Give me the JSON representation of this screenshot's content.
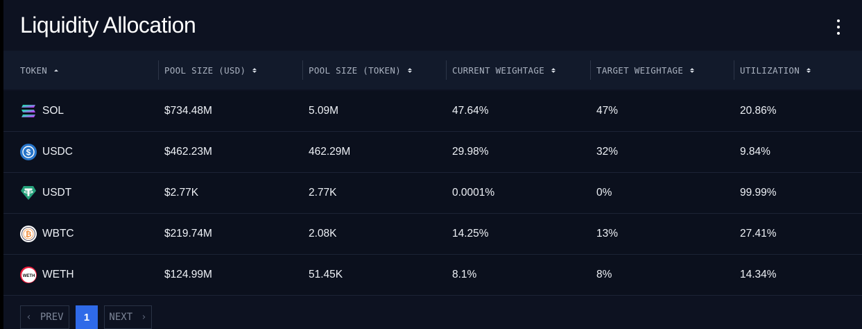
{
  "title": "Liquidity Allocation",
  "more_icon": "more-vertical-icon",
  "columns": [
    {
      "label": "TOKEN",
      "sort": "asc"
    },
    {
      "label": "POOL SIZE (USD)",
      "sort": "both"
    },
    {
      "label": "POOL SIZE (TOKEN)",
      "sort": "both"
    },
    {
      "label": "CURRENT WEIGHTAGE",
      "sort": "both"
    },
    {
      "label": "TARGET WEIGHTAGE",
      "sort": "both"
    },
    {
      "label": "UTILIZATION",
      "sort": "both"
    }
  ],
  "rows": [
    {
      "token": "SOL",
      "icon": "sol-icon",
      "pool_usd": "$734.48M",
      "pool_token": "5.09M",
      "current": "47.64%",
      "target": "47%",
      "utilization": "20.86%"
    },
    {
      "token": "USDC",
      "icon": "usdc-icon",
      "pool_usd": "$462.23M",
      "pool_token": "462.29M",
      "current": "29.98%",
      "target": "32%",
      "utilization": "9.84%"
    },
    {
      "token": "USDT",
      "icon": "usdt-icon",
      "pool_usd": "$2.77K",
      "pool_token": "2.77K",
      "current": "0.0001%",
      "target": "0%",
      "utilization": "99.99%"
    },
    {
      "token": "WBTC",
      "icon": "wbtc-icon",
      "pool_usd": "$219.74M",
      "pool_token": "2.08K",
      "current": "14.25%",
      "target": "13%",
      "utilization": "27.41%"
    },
    {
      "token": "WETH",
      "icon": "weth-icon",
      "pool_usd": "$124.99M",
      "pool_token": "51.45K",
      "current": "8.1%",
      "target": "8%",
      "utilization": "14.34%"
    }
  ],
  "pagination": {
    "prev_label": "PREV",
    "current_page": "1",
    "next_label": "NEXT"
  },
  "colors": {
    "background": "#0d1221",
    "header_row": "#121a2b",
    "accent": "#2f6ae8",
    "text": "#eef1f6",
    "muted": "#aab2c0"
  }
}
